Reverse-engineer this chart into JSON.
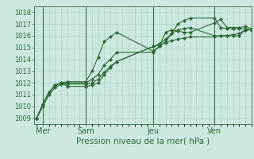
{
  "bg_color": "#cde8e0",
  "grid_color": "#aacfc4",
  "line_color": "#2d6a38",
  "title": "Pression niveau de la mer( hPa )",
  "ylim": [
    1008.5,
    1018.5
  ],
  "yticks": [
    1009,
    1010,
    1011,
    1012,
    1013,
    1014,
    1015,
    1016,
    1017,
    1018
  ],
  "xlim": [
    -0.2,
    17.5
  ],
  "xtick_positions": [
    0.5,
    4.0,
    9.5,
    14.5
  ],
  "xtick_labels": [
    "Mer",
    "Sam",
    "Jeu",
    "Ven"
  ],
  "vline_positions": [
    0.5,
    4.0,
    9.5,
    14.5
  ],
  "series": [
    {
      "x": [
        0.0,
        0.5,
        1.0,
        1.5,
        2.0,
        2.5,
        4.0,
        4.5,
        5.0,
        5.5,
        6.0,
        6.5,
        9.5,
        10.0,
        10.5,
        11.0,
        11.5,
        12.0,
        12.5,
        14.5,
        15.0,
        15.5,
        16.0,
        16.5,
        17.0,
        17.5
      ],
      "y": [
        1009.0,
        1010.2,
        1011.2,
        1011.8,
        1012.0,
        1012.1,
        1012.1,
        1013.0,
        1014.2,
        1015.5,
        1015.9,
        1016.3,
        1014.7,
        1015.1,
        1016.3,
        1016.5,
        1016.4,
        1016.3,
        1016.3,
        1017.1,
        1017.4,
        1016.7,
        1016.7,
        1016.7,
        1016.8,
        1016.6
      ]
    },
    {
      "x": [
        0.0,
        0.5,
        1.0,
        1.5,
        2.0,
        2.5,
        4.0,
        4.5,
        5.0,
        5.5,
        6.0,
        6.5,
        9.5,
        10.0,
        10.5,
        11.0,
        11.5,
        12.0,
        12.5,
        14.5,
        15.0,
        15.5,
        16.0,
        16.5,
        17.0,
        17.5
      ],
      "y": [
        1009.0,
        1010.2,
        1011.2,
        1011.8,
        1012.0,
        1012.0,
        1012.0,
        1012.3,
        1012.7,
        1013.5,
        1014.0,
        1014.6,
        1014.6,
        1015.1,
        1015.5,
        1016.2,
        1017.0,
        1017.3,
        1017.5,
        1017.5,
        1016.7,
        1016.6,
        1016.6,
        1016.6,
        1016.6,
        1016.5
      ]
    },
    {
      "x": [
        0.0,
        0.5,
        1.0,
        1.5,
        2.0,
        2.5,
        4.0,
        4.5,
        5.0,
        5.5,
        6.0,
        6.5,
        9.5,
        10.0,
        10.5,
        11.0,
        11.5,
        12.0,
        12.5,
        14.5,
        15.0,
        15.5,
        16.0,
        16.5,
        17.0,
        17.5
      ],
      "y": [
        1009.0,
        1010.2,
        1011.2,
        1011.8,
        1012.0,
        1011.7,
        1011.7,
        1011.8,
        1012.0,
        1012.7,
        1013.3,
        1013.8,
        1015.1,
        1015.3,
        1015.7,
        1016.2,
        1016.5,
        1016.6,
        1016.7,
        1016.0,
        1016.0,
        1016.0,
        1016.0,
        1016.0,
        1016.5,
        1016.5
      ]
    },
    {
      "x": [
        0.0,
        0.5,
        1.0,
        1.5,
        2.0,
        2.5,
        4.0,
        4.5,
        5.0,
        5.5,
        6.0,
        6.5,
        9.5,
        10.0,
        10.5,
        11.0,
        11.5,
        12.0,
        12.5,
        14.5,
        15.0,
        15.5,
        16.0,
        16.5,
        17.0,
        17.5
      ],
      "y": [
        1009.0,
        1010.0,
        1011.0,
        1011.6,
        1011.9,
        1011.9,
        1011.9,
        1012.0,
        1012.3,
        1012.9,
        1013.4,
        1013.8,
        1015.1,
        1015.2,
        1015.4,
        1015.6,
        1015.7,
        1015.8,
        1015.9,
        1015.9,
        1016.0,
        1016.0,
        1016.1,
        1016.2,
        1016.5,
        1016.5
      ]
    }
  ],
  "linewidth": 0.8,
  "markersize": 2.2,
  "title_fontsize": 7.5,
  "tick_fontsize": 6,
  "xlabel_fontsize": 7
}
